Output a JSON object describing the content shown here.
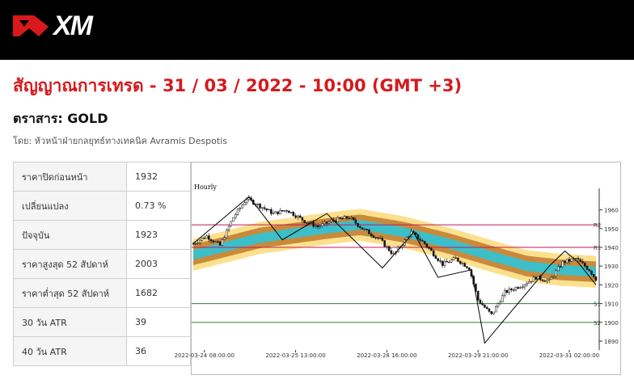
{
  "brand": {
    "name": "XM",
    "colors": {
      "brand_red": "#d7191c",
      "bar_bg": "#000000"
    }
  },
  "title": "สัญญาณการเทรด - 31 / 03 / 2022 - 10:00 (GMT +3)",
  "instrument": "ตราสาร: GOLD",
  "author": "โดย: หัวหน้าฝ่ายกลยุทธ์ทางเทคนิค Avramis Despotis",
  "stats": [
    {
      "label": "ราคาปิดก่อนหน้า",
      "value": "1932"
    },
    {
      "label": "เปลี่ยนแปลง",
      "value": "0.73 %"
    },
    {
      "label": "ปัจจุบัน",
      "value": "1923"
    },
    {
      "label": "ราคาสูงสุด 52 สัปดาห์",
      "value": "2003"
    },
    {
      "label": "ราคาต่ำสุด 52 สัปดาห์",
      "value": "1682"
    },
    {
      "label": "30 วัน ATR",
      "value": "39"
    },
    {
      "label": "40 วัน ATR",
      "value": "36"
    }
  ],
  "chart_data": {
    "type": "candlestick",
    "timeframe_label": "Hourly",
    "ylim": [
      1887,
      1968
    ],
    "y_ticks": [
      "1960",
      "1950",
      "1940",
      "1930",
      "1920",
      "1910",
      "1900",
      "1890"
    ],
    "y_tick_values": [
      1960,
      1950,
      1940,
      1930,
      1920,
      1910,
      1900,
      1890
    ],
    "x_ticks": [
      "2022-03-24 08:00:00",
      "2022-03-25 13:00:00",
      "2022-03-28 16:00:00",
      "2022-03-29 21:00:00",
      "2022-03-31 02:00:00"
    ],
    "x_tick_index": [
      5,
      46,
      87,
      128,
      169
    ],
    "n_candles": 182,
    "levels": [
      {
        "name": "R2",
        "value": 1952,
        "color": "#c2185b"
      },
      {
        "name": "R1",
        "value": 1940,
        "color": "#c2185b"
      },
      {
        "name": "S1",
        "value": 1910,
        "color": "#2e7d32"
      },
      {
        "name": "S2",
        "value": 1900,
        "color": "#2e7d32"
      }
    ],
    "price_path": [
      [
        0,
        1942
      ],
      [
        6,
        1946
      ],
      [
        12,
        1941
      ],
      [
        18,
        1956
      ],
      [
        24,
        1966
      ],
      [
        30,
        1962
      ],
      [
        36,
        1958
      ],
      [
        42,
        1960
      ],
      [
        50,
        1954
      ],
      [
        56,
        1951
      ],
      [
        62,
        1954
      ],
      [
        70,
        1956
      ],
      [
        76,
        1950
      ],
      [
        84,
        1944
      ],
      [
        90,
        1936
      ],
      [
        98,
        1948
      ],
      [
        104,
        1942
      ],
      [
        112,
        1931
      ],
      [
        118,
        1934
      ],
      [
        124,
        1929
      ],
      [
        128,
        1912
      ],
      [
        134,
        1904
      ],
      [
        140,
        1916
      ],
      [
        148,
        1920
      ],
      [
        154,
        1924
      ],
      [
        160,
        1922
      ],
      [
        166,
        1932
      ],
      [
        172,
        1934
      ],
      [
        178,
        1928
      ],
      [
        181,
        1923
      ]
    ],
    "zigzag": [
      [
        0,
        1942
      ],
      [
        25,
        1967
      ],
      [
        40,
        1944
      ],
      [
        60,
        1958
      ],
      [
        85,
        1929
      ],
      [
        99,
        1948
      ],
      [
        110,
        1924
      ],
      [
        125,
        1928
      ],
      [
        131,
        1889
      ],
      [
        160,
        1930
      ],
      [
        167,
        1938
      ],
      [
        173,
        1932
      ],
      [
        181,
        1920
      ]
    ],
    "bands": {
      "outer_color": "#fce08d",
      "middle_color": "#c98a3c",
      "inner_color": "#3dbfc9",
      "center": [
        [
          0,
          1936
        ],
        [
          30,
          1945
        ],
        [
          60,
          1950
        ],
        [
          75,
          1952
        ],
        [
          95,
          1948
        ],
        [
          115,
          1942
        ],
        [
          135,
          1935
        ],
        [
          150,
          1930
        ],
        [
          165,
          1928
        ],
        [
          181,
          1927
        ]
      ]
    }
  }
}
